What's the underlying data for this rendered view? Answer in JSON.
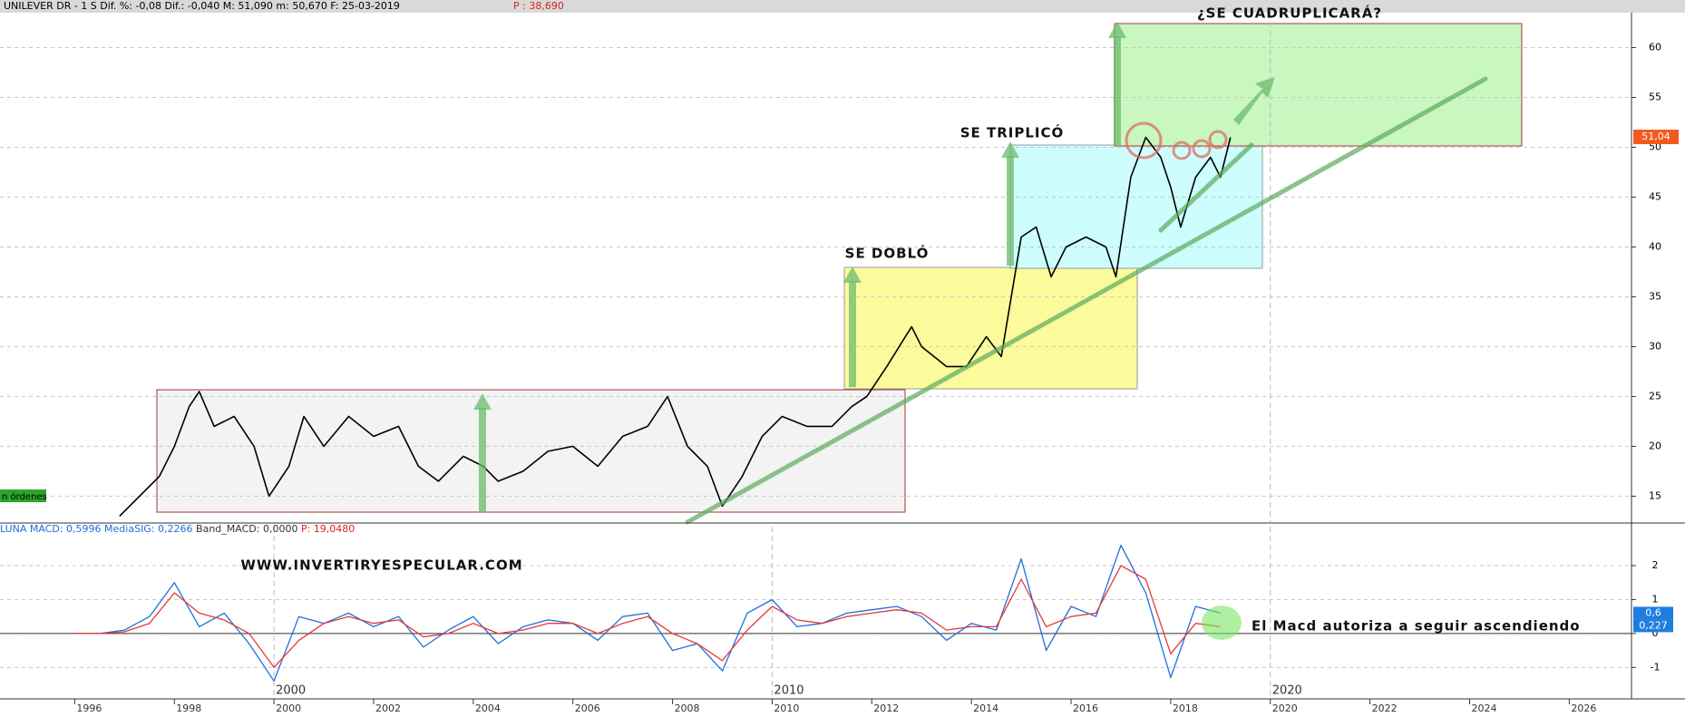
{
  "header": {
    "text": "UNILEVER DR -  1 S Dif. %: -0,08 Dif.: -0,040 M: 51,090 m: 50,670 F: 25-03-2019",
    "price": "P : 38,690"
  },
  "badge": "n órdenes",
  "annotations": [
    "¿SE CUADRUPLICARÁ?",
    "SE TRIPLICÓ",
    "SE DOBLÓ",
    "WWW.INVERTIRYESPECULAR.COM",
    "El Macd autoriza a seguir ascendiendo"
  ],
  "chart_data": [
    {
      "type": "line",
      "color": "#000000",
      "x": [
        1996.9,
        1997.3,
        1997.7,
        1998.0,
        1998.3,
        1998.5,
        1998.8,
        1999.2,
        1999.6,
        1999.9,
        2000.3,
        2000.6,
        2001.0,
        2001.5,
        2002.0,
        2002.5,
        2002.9,
        2003.3,
        2003.8,
        2004.2,
        2004.5,
        2005.0,
        2005.5,
        2006.0,
        2006.5,
        2007.0,
        2007.5,
        2007.9,
        2008.3,
        2008.7,
        2009.0,
        2009.4,
        2009.8,
        2010.2,
        2010.7,
        2011.2,
        2011.6,
        2011.9,
        2012.3,
        2012.8,
        2013.0,
        2013.5,
        2013.9,
        2014.3,
        2014.6,
        2014.8,
        2015.0,
        2015.3,
        2015.6,
        2015.9,
        2016.3,
        2016.7,
        2016.9,
        2017.2,
        2017.5,
        2017.8,
        2018.0,
        2018.2,
        2018.5,
        2018.8,
        2019.0,
        2019.2
      ],
      "values": [
        13,
        15,
        17,
        20,
        24,
        25.5,
        22,
        23,
        20,
        15,
        18,
        23,
        20,
        23,
        21,
        22,
        18,
        16.5,
        19,
        18,
        16.5,
        17.5,
        19.5,
        20,
        18,
        21,
        22,
        25,
        20,
        18,
        14,
        17,
        21,
        23,
        22,
        22,
        24,
        25,
        28,
        32,
        30,
        28,
        28,
        31,
        29,
        35,
        41,
        42,
        37,
        40,
        41,
        40,
        37,
        47,
        51,
        49,
        46,
        42,
        47,
        49,
        47,
        51
      ],
      "xlim": [
        1994.5,
        2027.25
      ],
      "ylim": [
        12.4,
        63.5
      ],
      "yticks": [
        15,
        20,
        25,
        30,
        35,
        40,
        45,
        50,
        55,
        60
      ],
      "grid": true,
      "major_xticks": [
        2020
      ],
      "last_price": {
        "value": 51.04,
        "label": "51,04"
      }
    },
    {
      "type": "line",
      "x": [
        1996,
        1996.5,
        1997,
        1997.5,
        1998,
        1998.5,
        1999,
        1999.5,
        2000,
        2000.5,
        2001,
        2001.5,
        2002,
        2002.5,
        2003,
        2003.5,
        2004,
        2004.5,
        2005,
        2005.5,
        2006,
        2006.5,
        2007,
        2007.5,
        2008,
        2008.5,
        2009,
        2009.5,
        2010,
        2010.5,
        2011,
        2011.5,
        2012,
        2012.5,
        2013,
        2013.5,
        2014,
        2014.5,
        2015,
        2015.5,
        2016,
        2016.5,
        2017,
        2017.5,
        2018,
        2018.5,
        2019
      ],
      "series": [
        {
          "color": "#1e6fd9",
          "values": [
            0,
            0,
            0.1,
            0.5,
            1.5,
            0.2,
            0.6,
            -0.3,
            -1.4,
            0.5,
            0.3,
            0.6,
            0.2,
            0.5,
            -0.4,
            0.1,
            0.5,
            -0.3,
            0.2,
            0.4,
            0.3,
            -0.2,
            0.5,
            0.6,
            -0.5,
            -0.3,
            -1.1,
            0.6,
            1.0,
            0.2,
            0.3,
            0.6,
            0.7,
            0.8,
            0.5,
            -0.2,
            0.3,
            0.1,
            2.2,
            -0.5,
            0.8,
            0.5,
            2.6,
            1.2,
            -1.3,
            0.8,
            0.6
          ]
        },
        {
          "color": "#e53935",
          "values": [
            0,
            0,
            0.05,
            0.3,
            1.2,
            0.6,
            0.4,
            0,
            -1.0,
            -0.2,
            0.3,
            0.5,
            0.3,
            0.4,
            -0.1,
            0,
            0.3,
            0,
            0.1,
            0.3,
            0.3,
            0,
            0.3,
            0.5,
            0,
            -0.3,
            -0.8,
            0.1,
            0.8,
            0.4,
            0.3,
            0.5,
            0.6,
            0.7,
            0.6,
            0.1,
            0.2,
            0.2,
            1.6,
            0.2,
            0.5,
            0.6,
            2.0,
            1.6,
            -0.6,
            0.3,
            0.2
          ]
        }
      ],
      "legend_text": [
        "LUNA MACD: 0,5996",
        "MediaSIG: 0,2266",
        "Band_MACD: 0,0000",
        "P: 19,0480"
      ],
      "xlim": [
        1994.5,
        2027.25
      ],
      "ylim": [
        -1.9,
        3.15
      ],
      "yticks": [
        -1,
        0,
        1,
        2
      ],
      "grid": true,
      "xticks": [
        1996,
        1998,
        2000,
        2002,
        2004,
        2006,
        2008,
        2010,
        2012,
        2014,
        2016,
        2018,
        2020,
        2022,
        2024,
        2026
      ],
      "major_xticks": [
        2000,
        2010,
        2020
      ],
      "last_values": [
        {
          "value": 0.6,
          "label": "0,6"
        },
        {
          "value": 0.227,
          "label": "0,227"
        }
      ]
    }
  ]
}
